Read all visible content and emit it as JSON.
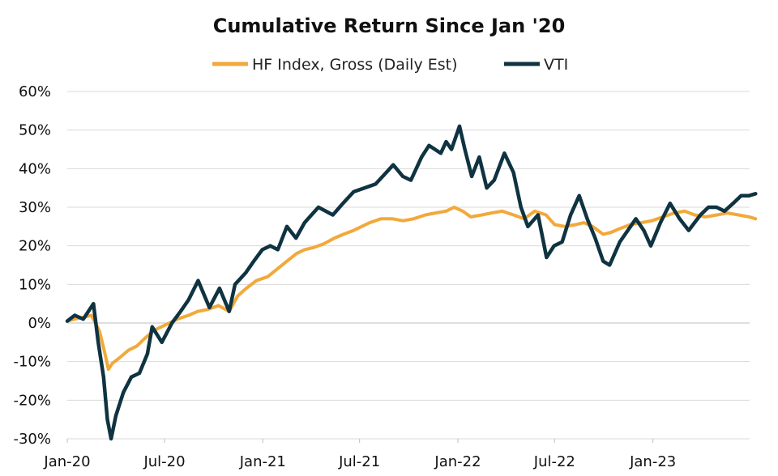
{
  "chart_data": {
    "type": "line",
    "title": "Cumulative Return Since Jan '20",
    "xlabel": "",
    "ylabel": "",
    "ylim": [
      -30,
      60
    ],
    "y_unit": "%",
    "y_ticks": [
      -30,
      -20,
      -10,
      0,
      10,
      20,
      30,
      40,
      50,
      60
    ],
    "y_tick_labels": [
      "-30%",
      "-20%",
      "-10%",
      "0%",
      "10%",
      "20%",
      "30%",
      "40%",
      "50%",
      "60%"
    ],
    "x_range": [
      "2020-01",
      "2023-07"
    ],
    "x_ticks": [
      "2020-01",
      "2020-07",
      "2021-01",
      "2021-07",
      "2022-01",
      "2022-07",
      "2023-01"
    ],
    "x_tick_labels": [
      "Jan-20",
      "Jul-20",
      "Jan-21",
      "Jul-21",
      "Jan-22",
      "Jul-22",
      "Jan-23"
    ],
    "grid": true,
    "legend_position": "top-center",
    "series": [
      {
        "name": "HF Index, Gross (Daily Est)",
        "color": "#f2a93b",
        "points": [
          [
            "2020-01-01",
            0.5
          ],
          [
            "2020-01-15",
            1
          ],
          [
            "2020-02-01",
            1.5
          ],
          [
            "2020-02-15",
            2
          ],
          [
            "2020-03-01",
            -2
          ],
          [
            "2020-03-10",
            -7
          ],
          [
            "2020-03-18",
            -12
          ],
          [
            "2020-03-25",
            -10.5
          ],
          [
            "2020-04-08",
            -9
          ],
          [
            "2020-04-25",
            -7
          ],
          [
            "2020-05-10",
            -6
          ],
          [
            "2020-05-25",
            -4
          ],
          [
            "2020-06-10",
            -2
          ],
          [
            "2020-06-25",
            -1
          ],
          [
            "2020-07-10",
            0
          ],
          [
            "2020-07-25",
            1
          ],
          [
            "2020-08-15",
            2
          ],
          [
            "2020-09-01",
            3
          ],
          [
            "2020-09-20",
            3.5
          ],
          [
            "2020-10-10",
            4.5
          ],
          [
            "2020-10-30",
            3
          ],
          [
            "2020-11-15",
            7
          ],
          [
            "2020-12-01",
            9
          ],
          [
            "2020-12-20",
            11
          ],
          [
            "2021-01-10",
            12
          ],
          [
            "2021-01-28",
            14
          ],
          [
            "2021-02-15",
            16
          ],
          [
            "2021-03-05",
            18
          ],
          [
            "2021-03-20",
            19
          ],
          [
            "2021-04-05",
            19.5
          ],
          [
            "2021-04-25",
            20.5
          ],
          [
            "2021-05-15",
            22
          ],
          [
            "2021-06-01",
            23
          ],
          [
            "2021-06-20",
            24
          ],
          [
            "2021-07-05",
            25
          ],
          [
            "2021-07-20",
            26
          ],
          [
            "2021-08-10",
            27
          ],
          [
            "2021-09-01",
            27
          ],
          [
            "2021-09-20",
            26.5
          ],
          [
            "2021-10-10",
            27
          ],
          [
            "2021-11-01",
            28
          ],
          [
            "2021-11-20",
            28.5
          ],
          [
            "2021-12-10",
            29
          ],
          [
            "2021-12-25",
            30
          ],
          [
            "2022-01-10",
            29
          ],
          [
            "2022-01-25",
            27.5
          ],
          [
            "2022-02-15",
            28
          ],
          [
            "2022-03-05",
            28.5
          ],
          [
            "2022-03-25",
            29
          ],
          [
            "2022-04-15",
            28
          ],
          [
            "2022-05-05",
            27
          ],
          [
            "2022-05-25",
            29
          ],
          [
            "2022-06-15",
            28
          ],
          [
            "2022-07-01",
            25.5
          ],
          [
            "2022-07-20",
            25
          ],
          [
            "2022-08-10",
            25.5
          ],
          [
            "2022-08-25",
            26
          ],
          [
            "2022-09-10",
            25
          ],
          [
            "2022-09-30",
            23
          ],
          [
            "2022-10-15",
            23.5
          ],
          [
            "2022-11-01",
            24.5
          ],
          [
            "2022-11-20",
            25.5
          ],
          [
            "2022-12-10",
            26
          ],
          [
            "2022-12-30",
            26.5
          ],
          [
            "2023-01-20",
            27.5
          ],
          [
            "2023-02-10",
            28.5
          ],
          [
            "2023-03-01",
            29
          ],
          [
            "2023-03-20",
            28
          ],
          [
            "2023-04-10",
            27.5
          ],
          [
            "2023-05-01",
            28
          ],
          [
            "2023-05-20",
            28.5
          ],
          [
            "2023-06-10",
            28
          ],
          [
            "2023-06-30",
            27.5
          ],
          [
            "2023-07-12",
            27
          ]
        ]
      },
      {
        "name": "VTI",
        "color": "#0f3341",
        "points": [
          [
            "2020-01-01",
            0.5
          ],
          [
            "2020-01-15",
            2
          ],
          [
            "2020-01-31",
            1
          ],
          [
            "2020-02-19",
            5
          ],
          [
            "2020-02-28",
            -5
          ],
          [
            "2020-03-09",
            -14
          ],
          [
            "2020-03-16",
            -25
          ],
          [
            "2020-03-23",
            -30
          ],
          [
            "2020-04-01",
            -24
          ],
          [
            "2020-04-15",
            -18
          ],
          [
            "2020-04-30",
            -14
          ],
          [
            "2020-05-15",
            -13
          ],
          [
            "2020-05-30",
            -8
          ],
          [
            "2020-06-08",
            -1
          ],
          [
            "2020-06-26",
            -5
          ],
          [
            "2020-07-15",
            0
          ],
          [
            "2020-07-31",
            3
          ],
          [
            "2020-08-15",
            6
          ],
          [
            "2020-09-02",
            11
          ],
          [
            "2020-09-23",
            4
          ],
          [
            "2020-10-12",
            9
          ],
          [
            "2020-10-30",
            3
          ],
          [
            "2020-11-10",
            10
          ],
          [
            "2020-11-30",
            13
          ],
          [
            "2020-12-15",
            16
          ],
          [
            "2020-12-31",
            19
          ],
          [
            "2021-01-15",
            20
          ],
          [
            "2021-01-29",
            19
          ],
          [
            "2021-02-15",
            25
          ],
          [
            "2021-03-04",
            22
          ],
          [
            "2021-03-20",
            26
          ],
          [
            "2021-04-15",
            30
          ],
          [
            "2021-05-12",
            28
          ],
          [
            "2021-05-31",
            31
          ],
          [
            "2021-06-20",
            34
          ],
          [
            "2021-07-10",
            35
          ],
          [
            "2021-07-31",
            36
          ],
          [
            "2021-08-20",
            39
          ],
          [
            "2021-09-02",
            41
          ],
          [
            "2021-09-20",
            38
          ],
          [
            "2021-10-05",
            37
          ],
          [
            "2021-10-25",
            43
          ],
          [
            "2021-11-08",
            46
          ],
          [
            "2021-11-30",
            44
          ],
          [
            "2021-12-10",
            47
          ],
          [
            "2021-12-20",
            45
          ],
          [
            "2022-01-04",
            51
          ],
          [
            "2022-01-14",
            45
          ],
          [
            "2022-01-27",
            38
          ],
          [
            "2022-02-10",
            43
          ],
          [
            "2022-02-24",
            35
          ],
          [
            "2022-03-10",
            37
          ],
          [
            "2022-03-29",
            44
          ],
          [
            "2022-04-15",
            39
          ],
          [
            "2022-04-29",
            30
          ],
          [
            "2022-05-12",
            25
          ],
          [
            "2022-05-31",
            28
          ],
          [
            "2022-06-16",
            17
          ],
          [
            "2022-06-30",
            20
          ],
          [
            "2022-07-15",
            21
          ],
          [
            "2022-07-31",
            28
          ],
          [
            "2022-08-16",
            33
          ],
          [
            "2022-08-31",
            27
          ],
          [
            "2022-09-15",
            22
          ],
          [
            "2022-09-30",
            16
          ],
          [
            "2022-10-12",
            15
          ],
          [
            "2022-10-31",
            21
          ],
          [
            "2022-11-15",
            24
          ],
          [
            "2022-11-30",
            27
          ],
          [
            "2022-12-15",
            24
          ],
          [
            "2022-12-28",
            20
          ],
          [
            "2023-01-15",
            26
          ],
          [
            "2023-02-02",
            31
          ],
          [
            "2023-02-20",
            27
          ],
          [
            "2023-03-09",
            24
          ],
          [
            "2023-03-31",
            28
          ],
          [
            "2023-04-15",
            30
          ],
          [
            "2023-04-30",
            30
          ],
          [
            "2023-05-15",
            29
          ],
          [
            "2023-05-31",
            31
          ],
          [
            "2023-06-15",
            33
          ],
          [
            "2023-06-30",
            33
          ],
          [
            "2023-07-12",
            33.5
          ]
        ]
      }
    ]
  }
}
